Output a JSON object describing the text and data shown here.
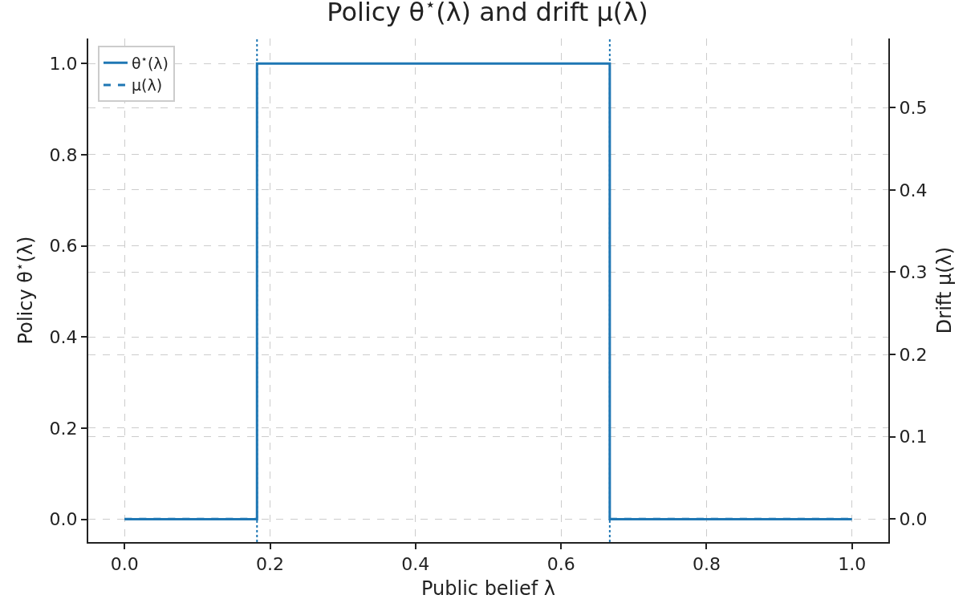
{
  "chart_data": {
    "type": "line",
    "title": "Policy θ$^{⋆}$(λ) and drift μ(λ)",
    "xlabel": "Public belief λ",
    "ylabel": "Policy θ$^{⋆}$(λ)",
    "y2label": "Drift μ(λ)",
    "series": [
      {
        "name": "θ$^{⋆}$(λ)",
        "color": "#1f77b4",
        "x": [
          0,
          0.182,
          0.182,
          0.667,
          0.667,
          1
        ],
        "values": [
          0,
          0,
          1,
          1,
          0,
          0
        ],
        "line_style": "solid"
      },
      {
        "name": "μ(λ)",
        "color": "#1f77b4",
        "axis": "y2",
        "x": [
          0,
          0.182,
          null,
          0.667,
          1
        ],
        "values": [
          0,
          0,
          null,
          0,
          0
        ],
        "line_style": "dashed"
      }
    ],
    "xlim": [
      -0.05,
      1.05
    ],
    "xticks": [
      {
        "value": 0,
        "label": "0.0"
      },
      {
        "value": 0.2,
        "label": "0.2"
      },
      {
        "value": 0.4,
        "label": "0.4"
      },
      {
        "value": 0.6,
        "label": "0.6"
      },
      {
        "value": 0.8,
        "label": "0.8"
      },
      {
        "value": 1,
        "label": "1.0"
      }
    ],
    "ylim": [
      -0.05,
      1.055
    ],
    "yticks": [
      {
        "value": 0,
        "label": "0.0"
      },
      {
        "value": 0.2,
        "label": "0.2"
      },
      {
        "value": 0.4,
        "label": "0.4"
      },
      {
        "value": 0.6,
        "label": "0.6"
      },
      {
        "value": 0.8,
        "label": "0.8"
      },
      {
        "value": 1,
        "label": "1.0"
      }
    ],
    "y2lim": [
      -0.028,
      0.584
    ],
    "y2ticks": [
      {
        "value": 0,
        "label": "0.0"
      },
      {
        "value": 0.1,
        "label": "0.1"
      },
      {
        "value": 0.2,
        "label": "0.2"
      },
      {
        "value": 0.3,
        "label": "0.3"
      },
      {
        "value": 0.4,
        "label": "0.4"
      },
      {
        "value": 0.5,
        "label": "0.5"
      }
    ],
    "ref_lines": [
      {
        "axis": "x",
        "value": 0.182,
        "color": "#1f77b4",
        "line_style": "dotted"
      },
      {
        "axis": "x",
        "value": 0.667,
        "color": "#1f77b4",
        "line_style": "dotted"
      }
    ],
    "grid": true,
    "legend": "top left",
    "marker": "none"
  }
}
